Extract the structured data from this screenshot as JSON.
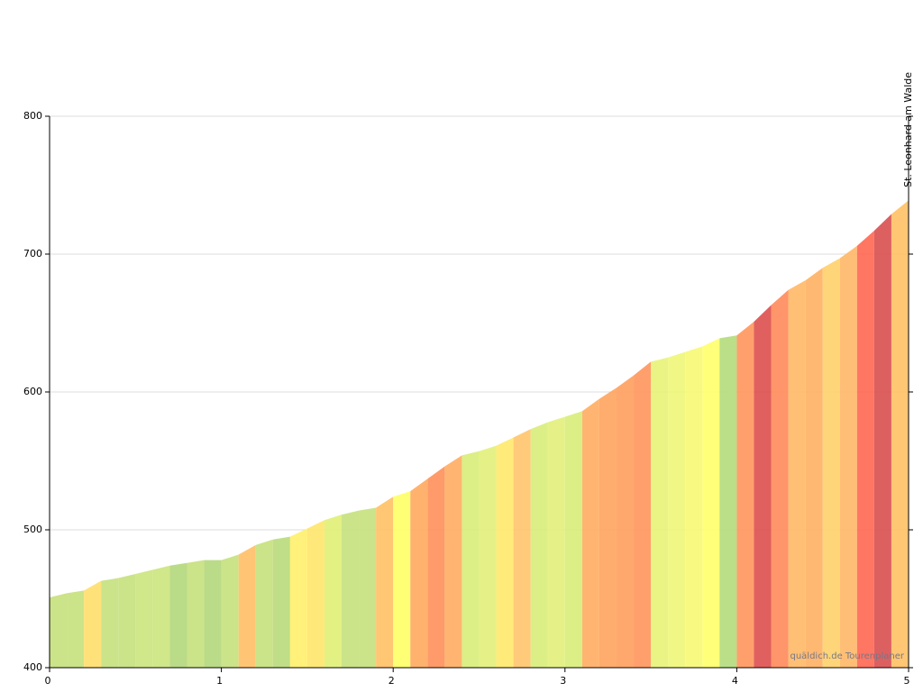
{
  "chart_data": {
    "type": "area",
    "x": [
      0,
      0.1,
      0.2,
      0.3,
      0.4,
      0.5,
      0.6,
      0.7,
      0.8,
      0.9,
      1,
      1.1,
      1.2,
      1.3,
      1.4,
      1.5,
      1.6,
      1.7,
      1.8,
      1.9,
      2,
      2.1,
      2.2,
      2.3,
      2.4,
      2.5,
      2.6,
      2.7,
      2.8,
      2.9,
      3,
      3.1,
      3.2,
      3.3,
      3.4,
      3.5,
      3.6,
      3.7,
      3.8,
      3.9,
      4,
      4.1,
      4.2,
      4.3,
      4.4,
      4.5,
      4.6,
      4.7,
      4.8,
      4.9,
      5
    ],
    "series": [
      {
        "values": [
          451,
          454,
          456,
          463,
          465,
          468,
          471,
          474,
          476,
          478,
          478,
          482,
          489,
          493,
          495,
          501,
          507,
          511,
          514,
          516,
          524,
          528,
          537,
          546,
          554,
          557,
          561,
          567,
          573,
          578,
          582,
          586,
          595,
          603,
          612,
          622,
          625,
          629,
          633,
          639,
          641,
          651,
          663,
          674,
          681,
          690,
          697,
          706,
          717,
          729,
          739
        ],
        "segment_colors": [
          "#c5e07c",
          "#c5e07c",
          "#ffde6a",
          "#c5e07c",
          "#c5e07c",
          "#cbe47d",
          "#cbe47d",
          "#b2d77a",
          "#c5e07c",
          "#b2d77a",
          "#c5e07c",
          "#ffbf66",
          "#c5e07c",
          "#b8da7a",
          "#ffef6a",
          "#ffe56b",
          "#e0ef75",
          "#c5e07c",
          "#c5e07c",
          "#ffc064",
          "#ffff66",
          "#ffaa5e",
          "#ff8f5a",
          "#ffad62",
          "#d8ec79",
          "#e2f07a",
          "#ffe96c",
          "#ffc46a",
          "#d8ec79",
          "#e2f07a",
          "#d8ec79",
          "#ffad62",
          "#ffa35f",
          "#ff9e5e",
          "#ff955c",
          "#e8f378",
          "#eef677",
          "#f7f873",
          "#ffff6a",
          "#b3db7b",
          "#ff965c",
          "#dd4f4f",
          "#ff8a5a",
          "#ffb866",
          "#ffb062",
          "#ffd06a",
          "#ffb766",
          "#ff6752",
          "#d94f4f",
          "#ffc064"
        ]
      }
    ],
    "xlim": [
      0,
      5
    ],
    "xticks": [
      0,
      1,
      2,
      3,
      4,
      5
    ],
    "ylim": [
      400,
      800
    ],
    "yticks": [
      400,
      500,
      600,
      700,
      800
    ],
    "grid": true,
    "annotations": [
      {
        "x": 5,
        "text": "St. Leonhard am Walde"
      }
    ],
    "watermark": "quäldich.de Tourenplaner"
  }
}
